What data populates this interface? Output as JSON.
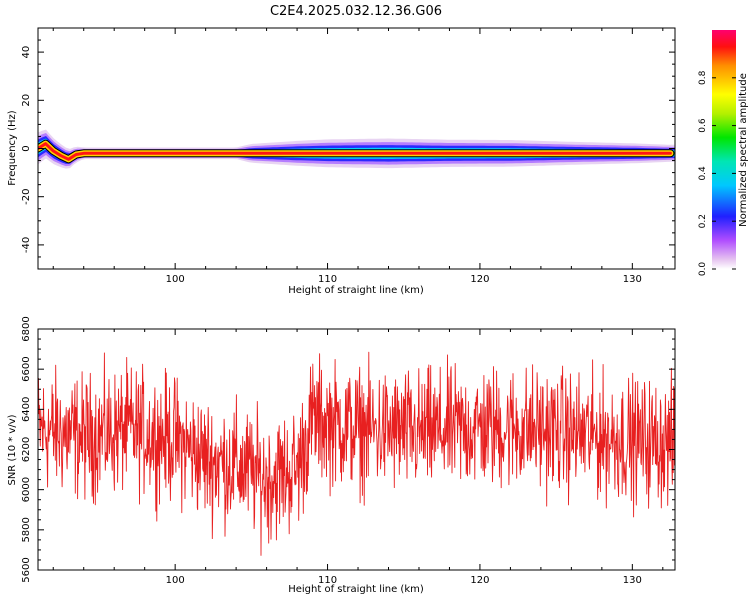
{
  "title": "C2E4.2025.032.12.36.G06",
  "chart_data": [
    {
      "type": "heatmap",
      "xlabel": "Height of straight line (km)",
      "ylabel": "Frequency (Hz)",
      "xlim": [
        91.0,
        132.8
      ],
      "ylim": [
        -50,
        50
      ],
      "x_ticks": [
        100,
        110,
        120,
        130
      ],
      "y_ticks": [
        -40,
        -20,
        0,
        20,
        40
      ],
      "x_tick_labels": [
        "100",
        "110",
        "120",
        "130"
      ],
      "y_tick_labels": [
        "-40",
        "-20",
        "0",
        "20",
        "40"
      ],
      "colorbar": {
        "label": "Normalized spectral amplitude",
        "range": [
          0,
          1
        ],
        "ticks": [
          0.0,
          0.2,
          0.4,
          0.6,
          0.8
        ],
        "tick_labels": [
          "0.0",
          "0.2",
          "0.4",
          "0.6",
          "0.8"
        ]
      },
      "ridge": {
        "x": [
          91.0,
          91.5,
          92.0,
          92.5,
          93.0,
          93.5,
          94.0,
          132.5
        ],
        "freq": [
          0.0,
          2.0,
          -1.0,
          -3.0,
          -4.5,
          -2.5,
          -2.0,
          -2.0
        ]
      },
      "spread": {
        "x": [
          91,
          93,
          94,
          104,
          105,
          108,
          110,
          114,
          118,
          122,
          126,
          130,
          132.5
        ],
        "halfwidth": [
          5.0,
          3.0,
          1.6,
          1.6,
          2.8,
          3.8,
          4.3,
          4.6,
          4.2,
          4.1,
          3.5,
          3.0,
          2.5
        ]
      }
    },
    {
      "type": "line",
      "xlabel": "Height of straight line (km)",
      "ylabel": "SNR (10 * v/v)",
      "xlim": [
        91.0,
        132.8
      ],
      "ylim": [
        5600,
        6800
      ],
      "x_ticks": [
        100,
        110,
        120,
        130
      ],
      "y_ticks": [
        5600,
        5800,
        6000,
        6200,
        6400,
        6600,
        6800
      ],
      "x_tick_labels": [
        "100",
        "110",
        "120",
        "130"
      ],
      "y_tick_labels": [
        "5600",
        "5800",
        "6000",
        "6200",
        "6400",
        "6600",
        "6800"
      ],
      "series_color": "#e82020",
      "series": [
        {
          "x_start": 91.0,
          "x_end": 132.8,
          "mean_profile": {
            "x": [
              91,
              94,
              97,
              100,
              102,
              104,
              106,
              108,
              109,
              112,
              116,
              120,
              124,
              128,
              132.8
            ],
            "y": [
              6300,
              6260,
              6300,
              6250,
              6150,
              6120,
              6050,
              6100,
              6350,
              6300,
              6280,
              6310,
              6300,
              6260,
              6230
            ]
          },
          "noise_amplitude": 150
        }
      ]
    }
  ]
}
